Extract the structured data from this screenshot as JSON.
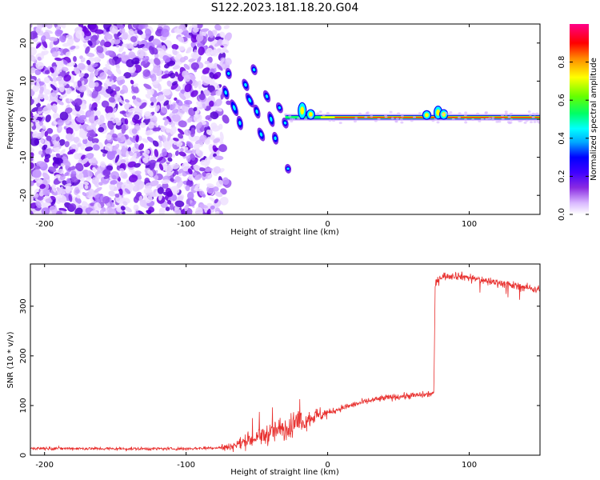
{
  "title": "S122.2023.181.18.20.G04",
  "chart_data": [
    {
      "type": "heatmap",
      "xlabel": "Height of straight line (km)",
      "ylabel": "Frequency (Hz)",
      "xlim": [
        -210,
        150
      ],
      "ylim": [
        -25,
        25
      ],
      "xticks": [
        -200,
        -100,
        0,
        100
      ],
      "yticks": [
        -20,
        -10,
        0,
        10,
        20
      ],
      "colorbar": {
        "label": "Normalized spectral amplitude",
        "range": [
          0,
          1
        ],
        "ticks": [
          "0.0",
          "0.2",
          "0.4",
          "0.6",
          "0.8"
        ],
        "colormap": "gist_ncar-like",
        "stops": [
          "#ffffff",
          "#8a2be2",
          "#3f00ff",
          "#0000ff",
          "#00aaff",
          "#00ffff",
          "#00ff66",
          "#66ff00",
          "#ffff00",
          "#ff8800",
          "#ff0000",
          "#ff0088"
        ]
      },
      "features": {
        "noise_region_x": [
          -210,
          -70
        ],
        "dispersive_region_x": [
          -75,
          -30
        ],
        "main_line_frequency": 0.5,
        "main_line_x": [
          -30,
          150
        ]
      }
    },
    {
      "type": "line",
      "xlabel": "Height of straight line (km)",
      "ylabel": "SNR (10 * v/v)",
      "xlim": [
        -210,
        150
      ],
      "ylim": [
        0,
        385
      ],
      "xticks": [
        -200,
        -100,
        0,
        100
      ],
      "yticks": [
        0,
        100,
        200,
        300
      ],
      "color": "#e8302e",
      "series_profile": [
        {
          "x": -210,
          "y": 14
        },
        {
          "x": -150,
          "y": 13
        },
        {
          "x": -100,
          "y": 13
        },
        {
          "x": -70,
          "y": 16
        },
        {
          "x": -55,
          "y": 30
        },
        {
          "x": -40,
          "y": 45
        },
        {
          "x": -30,
          "y": 55
        },
        {
          "x": -20,
          "y": 65
        },
        {
          "x": -10,
          "y": 78
        },
        {
          "x": 0,
          "y": 85
        },
        {
          "x": 10,
          "y": 95
        },
        {
          "x": 20,
          "y": 103
        },
        {
          "x": 30,
          "y": 110
        },
        {
          "x": 40,
          "y": 115
        },
        {
          "x": 50,
          "y": 118
        },
        {
          "x": 60,
          "y": 120
        },
        {
          "x": 70,
          "y": 122
        },
        {
          "x": 75,
          "y": 125
        },
        {
          "x": 76,
          "y": 345
        },
        {
          "x": 80,
          "y": 360
        },
        {
          "x": 90,
          "y": 362
        },
        {
          "x": 100,
          "y": 358
        },
        {
          "x": 110,
          "y": 352
        },
        {
          "x": 120,
          "y": 348
        },
        {
          "x": 130,
          "y": 342
        },
        {
          "x": 140,
          "y": 338
        },
        {
          "x": 150,
          "y": 333
        }
      ]
    }
  ]
}
